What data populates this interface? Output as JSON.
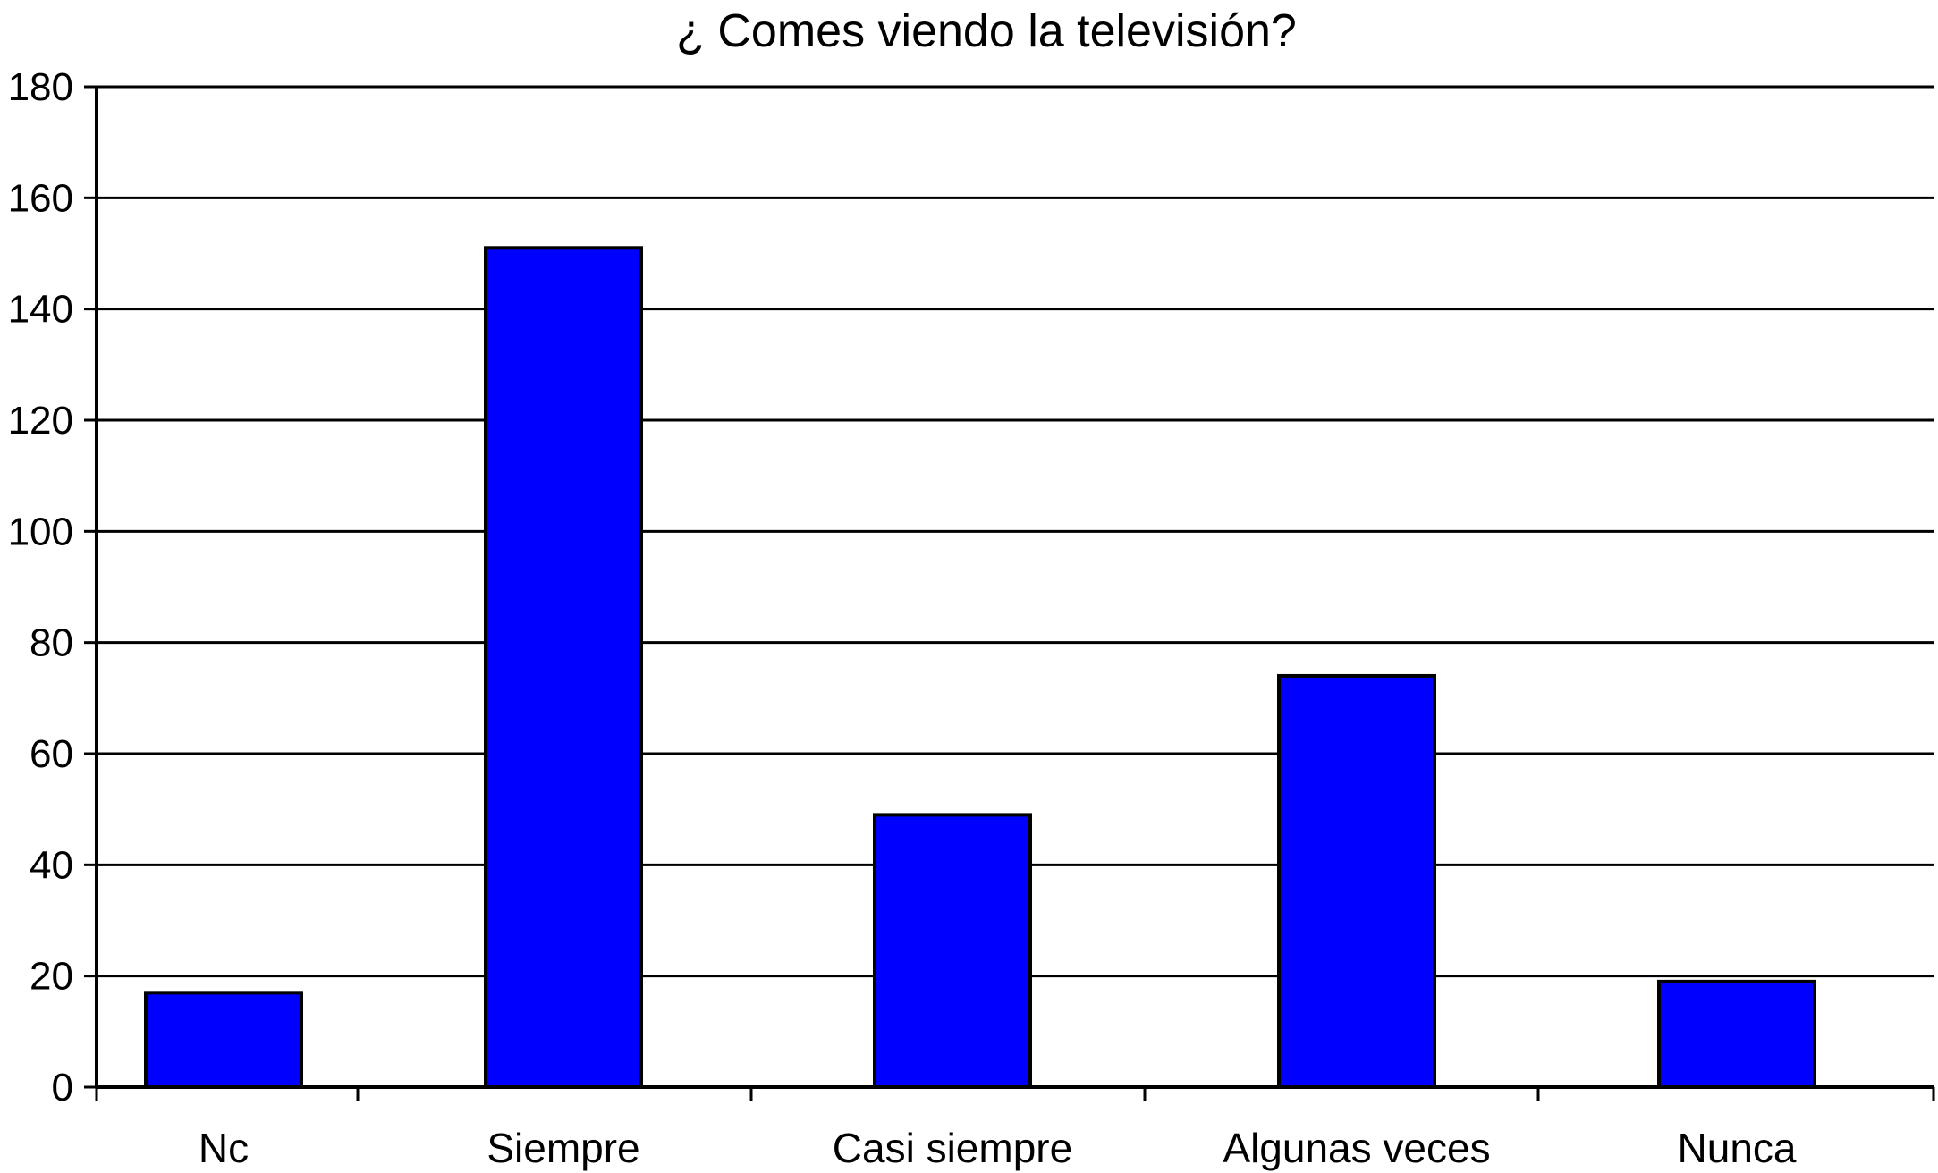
{
  "chart_data": {
    "type": "bar",
    "title": "¿ Comes viendo la televisión?",
    "xlabel": "",
    "ylabel": "",
    "categories": [
      "Nc",
      "Siempre",
      "Casi siempre",
      "Algunas veces",
      "Nunca"
    ],
    "values": [
      17,
      151,
      49,
      74,
      19
    ],
    "ylim": [
      0,
      180
    ],
    "yticks": [
      "0",
      "20",
      "40",
      "60",
      "80",
      "100",
      "120",
      "140",
      "160",
      "180"
    ],
    "grid": true,
    "legend": "none",
    "bar_color": "#0000FF"
  }
}
